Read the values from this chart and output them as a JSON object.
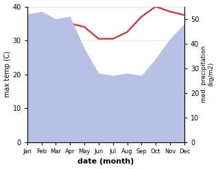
{
  "months": [
    "Jan",
    "Feb",
    "Mar",
    "Apr",
    "May",
    "Jun",
    "Jul",
    "Aug",
    "Sep",
    "Oct",
    "Nov",
    "Dec"
  ],
  "temp": [
    34.5,
    32.0,
    31.5,
    35.0,
    34.0,
    30.5,
    30.5,
    32.5,
    37.0,
    40.0,
    38.5,
    37.5
  ],
  "precip": [
    52.0,
    53.0,
    50.0,
    51.0,
    38.0,
    28.0,
    27.0,
    28.0,
    27.0,
    34.0,
    42.0,
    48.0
  ],
  "temp_color": "#c0444a",
  "precip_fill_color": "#b8c0e8",
  "ylabel_left": "max temp (C)",
  "ylabel_right": "med. precipitation\n(kg/m2)",
  "xlabel": "date (month)",
  "ylim_left": [
    0,
    40
  ],
  "ylim_right": [
    0,
    55
  ],
  "yticks_left": [
    0,
    10,
    20,
    30,
    40
  ],
  "yticks_right": [
    0,
    10,
    20,
    30,
    40,
    50
  ],
  "background_color": "#ffffff"
}
